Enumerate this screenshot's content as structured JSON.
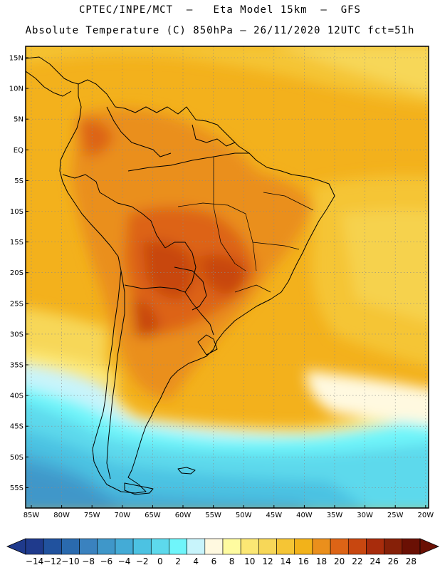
{
  "header": {
    "title_line1": "CPTEC/INPE/MCT  –   Eta Model 15km  –  GFS",
    "title_line2": "Absolute Temperature (C) 850hPa – 26/11/2020 12UTC fct=51h"
  },
  "map": {
    "lat_labels": [
      "15N",
      "10N",
      "5N",
      "EQ",
      "5S",
      "10S",
      "15S",
      "20S",
      "25S",
      "30S",
      "35S",
      "40S",
      "45S",
      "50S",
      "55S"
    ],
    "lon_labels": [
      "85W",
      "80W",
      "75W",
      "70W",
      "65W",
      "60W",
      "55W",
      "50W",
      "45W",
      "40W",
      "35W",
      "30W",
      "25W",
      "20W"
    ],
    "grid": true
  },
  "colorbar": {
    "labels": [
      "−14",
      "−12",
      "−10",
      "−8",
      "−6",
      "−4",
      "−2",
      "0",
      "2",
      "4",
      "6",
      "8",
      "10",
      "12",
      "14",
      "16",
      "18",
      "20",
      "22",
      "24",
      "26",
      "28"
    ],
    "colors": [
      "#1f3a8c",
      "#21529e",
      "#2a6aae",
      "#3a82bf",
      "#3f97c9",
      "#44abd6",
      "#4cc2e2",
      "#5dd9ec",
      "#6ff5fa",
      "#c8f4fb",
      "#fff9e0",
      "#fefba0",
      "#fbe774",
      "#f7d758",
      "#f5c535",
      "#f2b21a",
      "#ea8f1c",
      "#dd6416",
      "#c84710",
      "#a82c0c",
      "#862008",
      "#6a1004"
    ]
  }
}
